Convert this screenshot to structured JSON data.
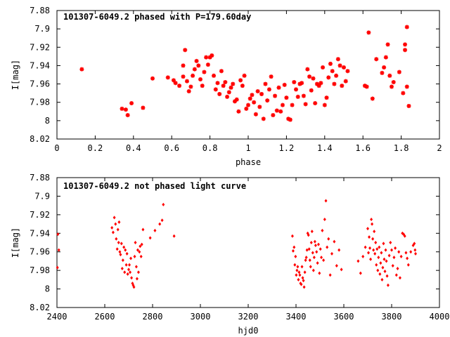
{
  "chart_data": [
    {
      "type": "scatter",
      "title": "101307-6049.2 phased with P=179.60day",
      "xlabel": "phase",
      "ylabel": "I[mag]",
      "xlim": [
        0,
        2
      ],
      "ylim": [
        8.02,
        7.88
      ],
      "y_inverted": true,
      "xticks": [
        "0",
        "0.2",
        "0.4",
        "0.6",
        "0.8",
        "1",
        "1.2",
        "1.4",
        "1.6",
        "1.8",
        "2"
      ],
      "yticks": [
        "7.88",
        "7.9",
        "7.92",
        "7.94",
        "7.96",
        "7.98",
        "8",
        "8.02"
      ],
      "marker": "star",
      "color": "#ff0000",
      "points": [
        [
          0.13,
          7.944
        ],
        [
          0.34,
          7.987
        ],
        [
          0.36,
          7.988
        ],
        [
          0.37,
          7.994
        ],
        [
          0.39,
          7.981
        ],
        [
          0.45,
          7.986
        ],
        [
          0.5,
          7.954
        ],
        [
          0.58,
          7.953
        ],
        [
          0.61,
          7.956
        ],
        [
          0.62,
          7.959
        ],
        [
          0.64,
          7.962
        ],
        [
          0.66,
          7.952
        ],
        [
          0.66,
          7.94
        ],
        [
          0.67,
          7.923
        ],
        [
          0.68,
          7.957
        ],
        [
          0.69,
          7.968
        ],
        [
          0.7,
          7.963
        ],
        [
          0.71,
          7.951
        ],
        [
          0.72,
          7.944
        ],
        [
          0.73,
          7.935
        ],
        [
          0.74,
          7.94
        ],
        [
          0.75,
          7.955
        ],
        [
          0.76,
          7.962
        ],
        [
          0.77,
          7.947
        ],
        [
          0.78,
          7.931
        ],
        [
          0.79,
          7.939
        ],
        [
          0.8,
          7.931
        ],
        [
          0.81,
          7.929
        ],
        [
          0.82,
          7.951
        ],
        [
          0.83,
          7.966
        ],
        [
          0.84,
          7.959
        ],
        [
          0.85,
          7.971
        ],
        [
          0.86,
          7.946
        ],
        [
          0.87,
          7.962
        ],
        [
          0.88,
          7.958
        ],
        [
          0.89,
          7.974
        ],
        [
          0.9,
          7.969
        ],
        [
          0.91,
          7.964
        ],
        [
          0.92,
          7.96
        ],
        [
          0.93,
          7.979
        ],
        [
          0.94,
          7.977
        ],
        [
          0.95,
          7.99
        ],
        [
          0.96,
          7.956
        ],
        [
          0.97,
          7.962
        ],
        [
          0.98,
          7.951
        ],
        [
          0.99,
          7.987
        ],
        [
          1.0,
          7.983
        ],
        [
          1.01,
          7.976
        ],
        [
          1.02,
          7.972
        ],
        [
          1.03,
          7.98
        ],
        [
          1.04,
          7.993
        ],
        [
          1.05,
          7.968
        ],
        [
          1.06,
          7.985
        ],
        [
          1.07,
          7.971
        ],
        [
          1.08,
          7.998
        ],
        [
          1.09,
          7.96
        ],
        [
          1.1,
          7.978
        ],
        [
          1.11,
          7.966
        ],
        [
          1.12,
          7.952
        ],
        [
          1.13,
          7.994
        ],
        [
          1.14,
          7.973
        ],
        [
          1.15,
          7.989
        ],
        [
          1.16,
          7.964
        ],
        [
          1.17,
          7.99
        ],
        [
          1.18,
          7.983
        ],
        [
          1.19,
          7.961
        ],
        [
          1.2,
          7.975
        ],
        [
          1.21,
          7.998
        ],
        [
          1.22,
          7.999
        ],
        [
          1.23,
          7.983
        ],
        [
          1.24,
          7.958
        ],
        [
          1.25,
          7.966
        ],
        [
          1.26,
          7.974
        ],
        [
          1.27,
          7.96
        ],
        [
          1.28,
          7.959
        ],
        [
          1.29,
          7.973
        ],
        [
          1.3,
          7.982
        ],
        [
          1.31,
          7.944
        ],
        [
          1.32,
          7.952
        ],
        [
          1.33,
          7.967
        ],
        [
          1.34,
          7.954
        ],
        [
          1.35,
          7.981
        ],
        [
          1.36,
          7.96
        ],
        [
          1.37,
          7.962
        ],
        [
          1.38,
          7.959
        ],
        [
          1.39,
          7.942
        ],
        [
          1.4,
          7.983
        ],
        [
          1.41,
          7.975
        ],
        [
          1.42,
          7.953
        ],
        [
          1.43,
          7.938
        ],
        [
          1.44,
          7.946
        ],
        [
          1.45,
          7.96
        ],
        [
          1.46,
          7.951
        ],
        [
          1.47,
          7.933
        ],
        [
          1.48,
          7.94
        ],
        [
          1.49,
          7.962
        ],
        [
          1.5,
          7.942
        ],
        [
          1.51,
          7.957
        ],
        [
          1.52,
          7.946
        ],
        [
          1.61,
          7.962
        ],
        [
          1.62,
          7.963
        ],
        [
          1.63,
          7.904
        ],
        [
          1.65,
          7.976
        ],
        [
          1.67,
          7.933
        ],
        [
          1.7,
          7.948
        ],
        [
          1.71,
          7.942
        ],
        [
          1.72,
          7.931
        ],
        [
          1.73,
          7.917
        ],
        [
          1.74,
          7.951
        ],
        [
          1.75,
          7.963
        ],
        [
          1.76,
          7.958
        ],
        [
          1.79,
          7.947
        ],
        [
          1.81,
          7.97
        ],
        [
          1.82,
          7.923
        ],
        [
          1.82,
          7.917
        ],
        [
          1.83,
          7.963
        ],
        [
          1.83,
          7.898
        ],
        [
          1.84,
          7.984
        ]
      ]
    },
    {
      "type": "scatter",
      "title": "101307-6049.2 not phased light curve",
      "xlabel": "hjd0",
      "ylabel": "I[mag]",
      "xlim": [
        2400,
        4000
      ],
      "ylim": [
        8.02,
        7.88
      ],
      "y_inverted": true,
      "xticks": [
        "2400",
        "2600",
        "2800",
        "3000",
        "3200",
        "3400",
        "3600",
        "3800",
        "4000"
      ],
      "yticks": [
        "7.88",
        "7.9",
        "7.92",
        "7.94",
        "7.96",
        "7.98",
        "8",
        "8.02"
      ],
      "marker": "diamond",
      "color": "#ff0000",
      "points": [
        [
          2402,
          7.977
        ],
        [
          2404,
          7.941
        ],
        [
          2408,
          7.958
        ],
        [
          2630,
          7.934
        ],
        [
          2635,
          7.939
        ],
        [
          2640,
          7.923
        ],
        [
          2645,
          7.93
        ],
        [
          2648,
          7.946
        ],
        [
          2652,
          7.957
        ],
        [
          2655,
          7.936
        ],
        [
          2658,
          7.95
        ],
        [
          2660,
          7.928
        ],
        [
          2663,
          7.96
        ],
        [
          2666,
          7.963
        ],
        [
          2670,
          7.951
        ],
        [
          2673,
          7.978
        ],
        [
          2676,
          7.969
        ],
        [
          2680,
          7.955
        ],
        [
          2683,
          7.982
        ],
        [
          2686,
          7.958
        ],
        [
          2690,
          7.974
        ],
        [
          2693,
          7.962
        ],
        [
          2696,
          7.984
        ],
        [
          2700,
          7.979
        ],
        [
          2703,
          7.974
        ],
        [
          2706,
          7.982
        ],
        [
          2709,
          7.967
        ],
        [
          2712,
          7.988
        ],
        [
          2716,
          7.994
        ],
        [
          2719,
          7.996
        ],
        [
          2722,
          7.998
        ],
        [
          2725,
          7.965
        ],
        [
          2728,
          7.95
        ],
        [
          2732,
          7.976
        ],
        [
          2735,
          7.989
        ],
        [
          2738,
          7.958
        ],
        [
          2741,
          7.982
        ],
        [
          2745,
          7.96
        ],
        [
          2748,
          7.954
        ],
        [
          2752,
          7.965
        ],
        [
          2755,
          7.952
        ],
        [
          2760,
          7.936
        ],
        [
          2790,
          7.945
        ],
        [
          2810,
          7.937
        ],
        [
          2830,
          7.93
        ],
        [
          2840,
          7.926
        ],
        [
          2845,
          7.909
        ],
        [
          2890,
          7.943
        ],
        [
          3385,
          7.943
        ],
        [
          3388,
          7.959
        ],
        [
          3392,
          7.955
        ],
        [
          3395,
          7.974
        ],
        [
          3398,
          7.965
        ],
        [
          3401,
          7.985
        ],
        [
          3404,
          7.98
        ],
        [
          3407,
          7.976
        ],
        [
          3410,
          7.99
        ],
        [
          3413,
          7.982
        ],
        [
          3416,
          7.985
        ],
        [
          3419,
          7.994
        ],
        [
          3422,
          7.995
        ],
        [
          3425,
          7.976
        ],
        [
          3428,
          7.988
        ],
        [
          3431,
          7.991
        ],
        [
          3434,
          7.998
        ],
        [
          3437,
          7.982
        ],
        [
          3440,
          7.969
        ],
        [
          3443,
          7.966
        ],
        [
          3446,
          7.958
        ],
        [
          3449,
          7.94
        ],
        [
          3452,
          7.942
        ],
        [
          3455,
          7.957
        ],
        [
          3458,
          7.969
        ],
        [
          3461,
          7.976
        ],
        [
          3464,
          7.95
        ],
        [
          3467,
          7.938
        ],
        [
          3470,
          7.961
        ],
        [
          3473,
          7.98
        ],
        [
          3476,
          7.966
        ],
        [
          3479,
          7.949
        ],
        [
          3482,
          7.953
        ],
        [
          3486,
          7.96
        ],
        [
          3490,
          7.972
        ],
        [
          3494,
          7.952
        ],
        [
          3498,
          7.983
        ],
        [
          3502,
          7.957
        ],
        [
          3506,
          7.966
        ],
        [
          3510,
          7.937
        ],
        [
          3515,
          7.969
        ],
        [
          3520,
          7.925
        ],
        [
          3525,
          7.905
        ],
        [
          3530,
          7.955
        ],
        [
          3536,
          7.946
        ],
        [
          3543,
          7.985
        ],
        [
          3550,
          7.962
        ],
        [
          3560,
          7.949
        ],
        [
          3570,
          7.975
        ],
        [
          3580,
          7.958
        ],
        [
          3590,
          7.979
        ],
        [
          3660,
          7.97
        ],
        [
          3670,
          7.983
        ],
        [
          3680,
          7.965
        ],
        [
          3690,
          7.955
        ],
        [
          3700,
          7.935
        ],
        [
          3703,
          7.961
        ],
        [
          3706,
          7.944
        ],
        [
          3709,
          7.956
        ],
        [
          3712,
          7.968
        ],
        [
          3715,
          7.925
        ],
        [
          3718,
          7.93
        ],
        [
          3721,
          7.946
        ],
        [
          3724,
          7.958
        ],
        [
          3727,
          7.938
        ],
        [
          3730,
          7.962
        ],
        [
          3733,
          7.95
        ],
        [
          3736,
          7.974
        ],
        [
          3739,
          7.957
        ],
        [
          3742,
          7.98
        ],
        [
          3745,
          7.966
        ],
        [
          3748,
          7.955
        ],
        [
          3751,
          7.984
        ],
        [
          3754,
          7.972
        ],
        [
          3757,
          7.961
        ],
        [
          3760,
          7.99
        ],
        [
          3763,
          7.977
        ],
        [
          3766,
          7.951
        ],
        [
          3769,
          7.968
        ],
        [
          3772,
          7.981
        ],
        [
          3775,
          7.958
        ],
        [
          3778,
          7.97
        ],
        [
          3781,
          7.986
        ],
        [
          3785,
          7.996
        ],
        [
          3790,
          7.964
        ],
        [
          3795,
          7.95
        ],
        [
          3800,
          7.958
        ],
        [
          3805,
          7.975
        ],
        [
          3810,
          7.966
        ],
        [
          3815,
          7.956
        ],
        [
          3820,
          7.985
        ],
        [
          3825,
          7.978
        ],
        [
          3830,
          7.96
        ],
        [
          3835,
          7.988
        ],
        [
          3840,
          7.965
        ],
        [
          3845,
          7.94
        ],
        [
          3850,
          7.941
        ],
        [
          3855,
          7.943
        ],
        [
          3860,
          7.961
        ],
        [
          3865,
          7.967
        ],
        [
          3870,
          7.974
        ],
        [
          3880,
          7.96
        ],
        [
          3890,
          7.953
        ],
        [
          3895,
          7.951
        ],
        [
          3898,
          7.958
        ],
        [
          3900,
          7.962
        ]
      ]
    }
  ]
}
